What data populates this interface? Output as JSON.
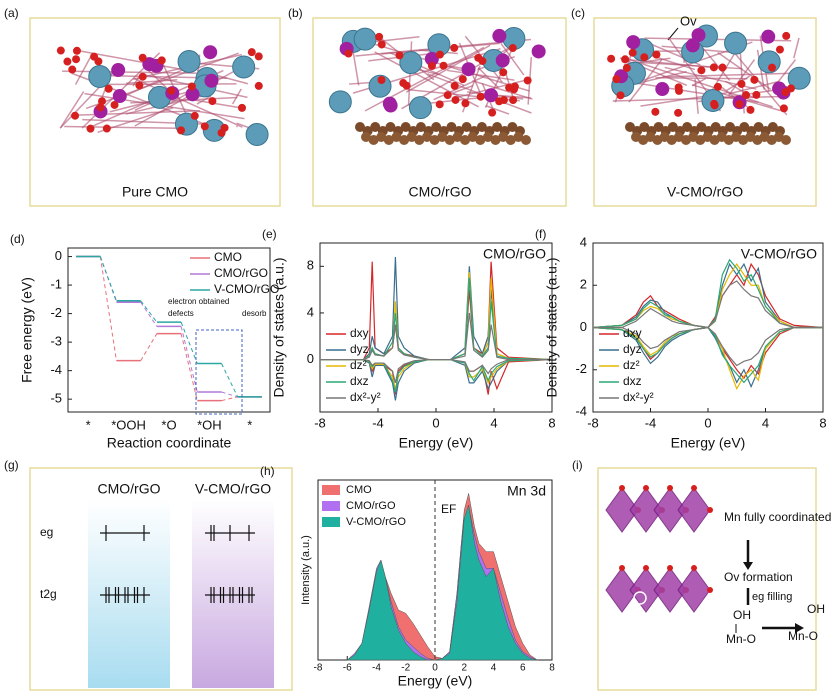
{
  "panels": [
    {
      "label": "(a)",
      "caption": "Pure CMO"
    },
    {
      "label": "(b)",
      "caption": "CMO/rGO"
    },
    {
      "label": "(c)",
      "caption": "V-CMO/rGO",
      "note": "Ov"
    },
    {
      "label": "(g)",
      "columns": [
        "CMO/rGO",
        "V-CMO/rGO"
      ],
      "levels": [
        "eg",
        "t2g"
      ]
    },
    {
      "label": "(i)",
      "steps": [
        "Mn fully coordinated",
        "Ov formation",
        "eg filling"
      ],
      "species": [
        "OH",
        "Mn-O",
        "OH",
        "Mn-O"
      ]
    }
  ],
  "chart_data": [
    {
      "type": "step",
      "panel": "(d)",
      "y_label": "Free energy (eV)",
      "x_label": "Reaction coordinate",
      "categories": [
        "*",
        "*OOH",
        "*O",
        "*OH",
        "*"
      ],
      "series": [
        {
          "name": "CMO",
          "color": "#e8707a",
          "values": [
            0,
            -3.65,
            -2.7,
            -5.05,
            -4.92
          ]
        },
        {
          "name": "CMO/rGO",
          "color": "#b07ad8",
          "values": [
            0,
            -1.6,
            -2.45,
            -4.75,
            -4.92
          ]
        },
        {
          "name": "V-CMO/rGO",
          "color": "#2aa8a0",
          "values": [
            0,
            -1.55,
            -2.3,
            -3.75,
            -4.92
          ]
        }
      ],
      "ylim": [
        -5.45,
        0.3
      ],
      "yticks": [
        0,
        -1,
        -2,
        -3,
        -4,
        -5
      ],
      "legend": "upper right",
      "annotations": [
        "electron obtained",
        "defects",
        "desorb"
      ]
    },
    {
      "type": "line",
      "panel": "(e)",
      "title": "CMO/rGO",
      "y_label": "Density of states (a.u.)",
      "x_label": "Energy (eV)",
      "x": [
        -8,
        -5,
        -4.6,
        -4.4,
        -4.2,
        -3.6,
        -3,
        -2.8,
        -2.6,
        -2.2,
        -1.5,
        -0.5,
        1,
        2,
        2.3,
        2.6,
        3.2,
        3.6,
        3.8,
        4.2,
        5,
        8
      ],
      "series": [
        {
          "name": "dxy",
          "color": "#d62728",
          "values": [
            0,
            0,
            1,
            8.4,
            1,
            0.5,
            1,
            3,
            1,
            0.5,
            0.3,
            0,
            0,
            0.5,
            6,
            1,
            0.5,
            2,
            8.4,
            1,
            0.2,
            0
          ],
          "values_down": [
            0,
            0,
            -0.3,
            -1,
            -0.5,
            -0.5,
            -1,
            -3,
            -1,
            -0.5,
            -0.2,
            0,
            0,
            -0.3,
            -1,
            -1,
            -0.5,
            -3,
            -1,
            -2.5,
            -0.2,
            0
          ]
        },
        {
          "name": "dyz",
          "color": "#3a6e8f",
          "values": [
            0,
            0,
            0.5,
            2,
            1,
            0.5,
            2,
            8.8,
            2,
            1,
            0.3,
            0,
            0,
            1,
            8,
            2,
            0.5,
            2,
            6,
            0.5,
            0.1,
            0
          ],
          "values_down": [
            0,
            0,
            -0.3,
            -1.5,
            -0.5,
            -0.5,
            -2,
            -3.5,
            -2,
            -1,
            -0.3,
            0,
            0,
            -0.5,
            -2,
            -2,
            -1,
            -2.5,
            -2,
            -1,
            -0.1,
            0
          ]
        },
        {
          "name": "dz²",
          "color": "#e6b800",
          "values": [
            0,
            0,
            0.3,
            1,
            0.5,
            0.3,
            1,
            5,
            1,
            0.5,
            0.2,
            0,
            0,
            0.5,
            7.5,
            1,
            0.3,
            1.5,
            7,
            0.5,
            0.1,
            0
          ],
          "values_down": [
            0,
            0,
            -0.2,
            -0.8,
            -0.4,
            -0.4,
            -1.5,
            -2.5,
            -1.5,
            -0.8,
            -0.2,
            0,
            0,
            -0.3,
            -1.5,
            -1.5,
            -0.8,
            -2,
            -1.5,
            -0.8,
            -0.1,
            0
          ]
        },
        {
          "name": "dxz",
          "color": "#2aa876",
          "values": [
            0,
            0,
            0.3,
            1,
            0.5,
            0.3,
            1.5,
            4,
            1,
            0.5,
            0.2,
            0,
            0,
            0.5,
            7,
            1,
            0.3,
            1,
            5,
            0.3,
            0.1,
            0
          ],
          "values_down": [
            0,
            0,
            -0.2,
            -0.6,
            -0.3,
            -0.3,
            -1.8,
            -2.8,
            -1.2,
            -0.6,
            -0.2,
            0,
            0,
            -0.3,
            -1.2,
            -1.8,
            -0.6,
            -1.8,
            -1.2,
            -0.6,
            -0.1,
            0
          ]
        },
        {
          "name": "dx²-y²",
          "color": "#777777",
          "values": [
            0,
            0,
            0.2,
            0.8,
            0.4,
            0.3,
            1,
            3,
            0.8,
            0.4,
            0.2,
            0,
            0,
            0.3,
            4,
            0.8,
            0.2,
            0.8,
            3,
            0.2,
            0,
            0
          ],
          "values_down": [
            0,
            0,
            -0.1,
            -0.5,
            -0.3,
            -0.3,
            -1,
            -2,
            -0.8,
            -0.4,
            -0.1,
            0,
            0,
            -0.2,
            -1,
            -1,
            -0.5,
            -1.2,
            -0.8,
            -0.4,
            0,
            0
          ]
        }
      ],
      "xlim": [
        -8,
        8
      ],
      "xticks": [
        -8,
        -4,
        0,
        4,
        8
      ],
      "ylim": [
        -4.5,
        10
      ],
      "yticks": [
        0,
        4,
        8
      ],
      "legend": "lower left"
    },
    {
      "type": "line",
      "panel": "(f)",
      "title": "V-CMO/rGO",
      "y_label": "Density of states (a.u.)",
      "x_label": "Energy (eV)",
      "x": [
        -8,
        -6,
        -5,
        -4.5,
        -4,
        -3.5,
        -3,
        -2.5,
        -2,
        -1,
        0,
        0.5,
        1,
        1.5,
        2,
        2.5,
        3,
        3.5,
        4,
        5,
        6,
        8
      ],
      "series": [
        {
          "name": "dxy",
          "color": "#d62728",
          "values": [
            0,
            0.1,
            0.6,
            1.2,
            1.5,
            1,
            0.8,
            0.6,
            0.4,
            0.1,
            0,
            0.5,
            1.5,
            2,
            2.5,
            2,
            3,
            2.5,
            1.5,
            0.4,
            0.1,
            0
          ],
          "values_down": [
            0,
            -0.1,
            -0.5,
            -1,
            -1.5,
            -1.2,
            -0.8,
            -0.5,
            -0.3,
            -0.1,
            0,
            -0.4,
            -1,
            -1.5,
            -2,
            -2.4,
            -1.8,
            -2.2,
            -1.2,
            -0.3,
            0,
            0
          ]
        },
        {
          "name": "dyz",
          "color": "#3a6e8f",
          "values": [
            0,
            0.1,
            0.5,
            1,
            1.3,
            1.2,
            0.7,
            0.5,
            0.3,
            0.1,
            0,
            0.4,
            2,
            3,
            2.5,
            3,
            2.2,
            2.8,
            1.2,
            0.3,
            0,
            0
          ],
          "values_down": [
            0,
            -0.1,
            -0.6,
            -1.2,
            -1.7,
            -1.4,
            -0.9,
            -0.6,
            -0.4,
            -0.1,
            0,
            -0.5,
            -1.2,
            -1.8,
            -2.6,
            -2,
            -2.8,
            -2,
            -1,
            -0.2,
            0,
            0
          ]
        },
        {
          "name": "dz²",
          "color": "#e6b800",
          "values": [
            0,
            0.1,
            0.4,
            0.8,
            1,
            0.9,
            0.6,
            0.4,
            0.3,
            0.1,
            0,
            0.3,
            1.8,
            2.5,
            3,
            2.5,
            2,
            2,
            1,
            0.3,
            0,
            0
          ],
          "values_down": [
            0,
            -0.1,
            -0.4,
            -0.9,
            -1.3,
            -1.1,
            -0.7,
            -0.4,
            -0.3,
            -0.1,
            0,
            -0.3,
            -1,
            -2,
            -2.9,
            -2.3,
            -2,
            -2.5,
            -1,
            -0.2,
            0,
            0
          ]
        },
        {
          "name": "dxz",
          "color": "#2aa876",
          "values": [
            0,
            0.1,
            0.4,
            0.9,
            1.2,
            1,
            0.6,
            0.5,
            0.3,
            0.1,
            0,
            0.4,
            2.5,
            3.2,
            2.8,
            2.2,
            2.5,
            1.8,
            1,
            0.2,
            0,
            0
          ],
          "values_down": [
            0,
            -0.1,
            -0.5,
            -1,
            -1.4,
            -1.2,
            -0.8,
            -0.5,
            -0.3,
            -0.1,
            0,
            -0.4,
            -1.3,
            -1.8,
            -2.2,
            -2.6,
            -2.2,
            -1.8,
            -0.9,
            -0.2,
            0,
            0
          ]
        },
        {
          "name": "dx²-y²",
          "color": "#777777",
          "values": [
            0,
            0,
            0.3,
            0.6,
            0.9,
            0.7,
            0.5,
            0.3,
            0.2,
            0.1,
            0,
            0.3,
            1.5,
            2,
            2.2,
            1.8,
            1.5,
            1.4,
            0.8,
            0.2,
            0,
            0
          ],
          "values_down": [
            0,
            0,
            -0.3,
            -0.7,
            -1,
            -0.9,
            -0.6,
            -0.4,
            -0.2,
            -0.1,
            0,
            -0.3,
            -0.9,
            -1.4,
            -1.8,
            -1.6,
            -1.5,
            -1.2,
            -0.6,
            -0.1,
            0,
            0
          ]
        }
      ],
      "xlim": [
        -8,
        8
      ],
      "xticks": [
        -8,
        -4,
        0,
        4,
        8
      ],
      "ylim": [
        -4,
        4
      ],
      "yticks": [
        -4,
        -2,
        0,
        2,
        4
      ],
      "legend": "lower left"
    },
    {
      "type": "area",
      "panel": "(h)",
      "title": "Mn 3d",
      "y_label": "Intensity (a.u.)",
      "x_label": "Energy (eV)",
      "x": [
        -6,
        -5.5,
        -5,
        -4.5,
        -4,
        -3.7,
        -3.4,
        -3,
        -2.5,
        -2,
        -1.5,
        -1,
        -0.5,
        0,
        0.5,
        1,
        1.5,
        1.8,
        2,
        2.3,
        2.7,
        3,
        3.5,
        4,
        4.5,
        5,
        5.5,
        6,
        6.5,
        7
      ],
      "series": [
        {
          "name": "CMO",
          "color": "#f07070",
          "values": [
            0,
            0.2,
            0.8,
            3,
            5.2,
            5.8,
            5,
            4,
            3,
            2.8,
            2.2,
            1.5,
            0.8,
            0.2,
            0.1,
            0.5,
            4,
            7,
            9,
            10,
            8,
            7,
            6.5,
            6.5,
            5,
            3.5,
            2,
            1,
            0.3,
            0
          ]
        },
        {
          "name": "CMO/rGO",
          "color": "#b070f0",
          "values": [
            0,
            0.4,
            1,
            3.2,
            5.5,
            6,
            5,
            3.5,
            2,
            1.2,
            0.8,
            0.4,
            0.1,
            0,
            0.1,
            0.5,
            4,
            7,
            8.5,
            9.2,
            7.5,
            6.5,
            5.5,
            5.5,
            4,
            2.5,
            1.2,
            0.5,
            0.2,
            0
          ]
        },
        {
          "name": "V-CMO/rGO",
          "color": "#20b0a0",
          "values": [
            0,
            0.3,
            1,
            3,
            5.3,
            6,
            5,
            3.2,
            1.8,
            1,
            0.5,
            0.2,
            0,
            0,
            0.1,
            0.4,
            3.5,
            6.5,
            8.5,
            9.3,
            7,
            6,
            5,
            5.5,
            3.5,
            2,
            1,
            0.4,
            0.1,
            0
          ]
        }
      ],
      "xlim": [
        -8,
        8
      ],
      "xticks": [
        -8,
        -6,
        -4,
        -2,
        0,
        2,
        4,
        6,
        8
      ],
      "ylim": [
        0,
        10.8
      ],
      "legend": "upper left",
      "vline": 0,
      "vline_label": "EF"
    }
  ]
}
